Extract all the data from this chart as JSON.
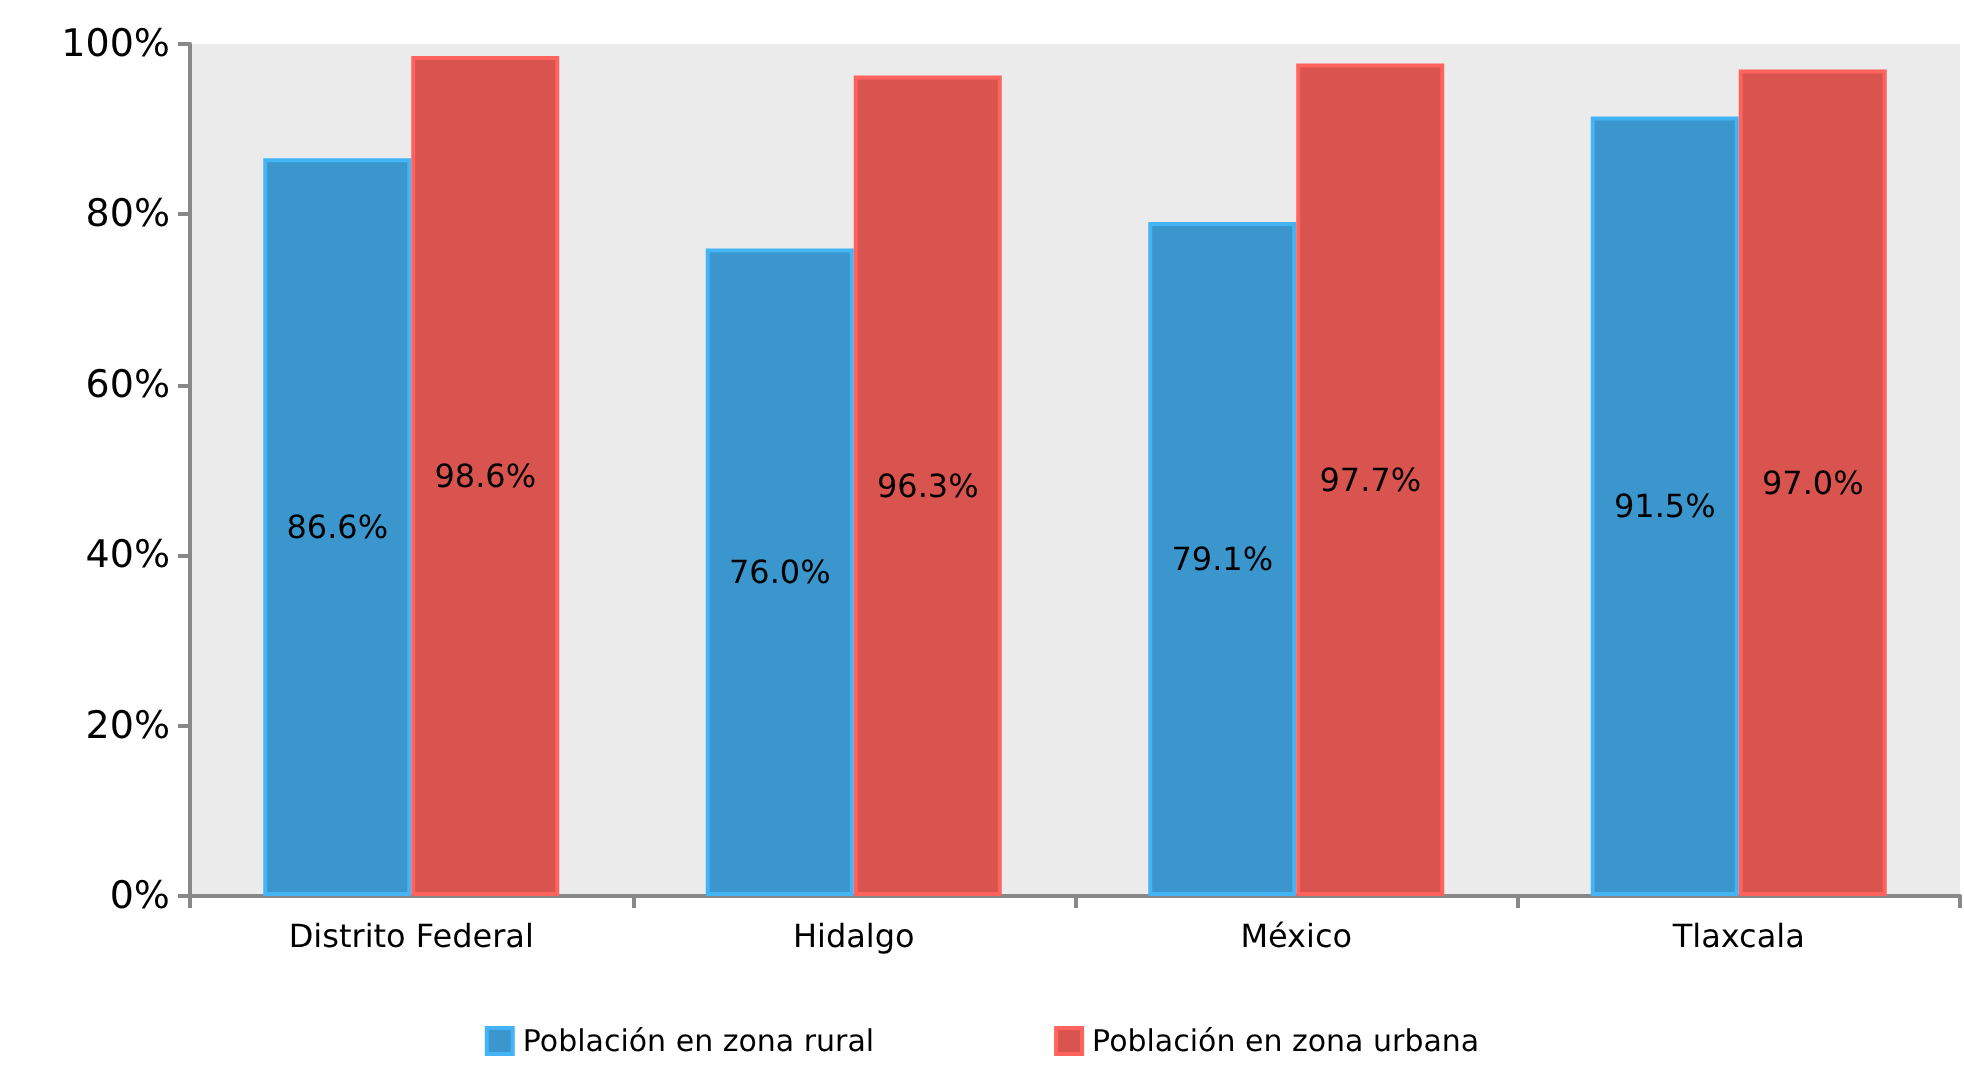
{
  "chart_data": {
    "type": "bar",
    "categories": [
      "Distrito Federal",
      "Hidalgo",
      "México",
      "Tlaxcala"
    ],
    "series": [
      {
        "name": "Población en zona rural",
        "color": "#3a96cc",
        "values": [
          86.6,
          76.0,
          79.1,
          91.5
        ],
        "value_labels": [
          "86.6%",
          "76.0%",
          "79.1%",
          "91.5%"
        ]
      },
      {
        "name": "Población en zona urbana",
        "color": "#d9534f",
        "values": [
          98.6,
          96.3,
          97.7,
          97.0
        ],
        "value_labels": [
          "98.6%",
          "96.3%",
          "97.7%",
          "97.0%"
        ]
      }
    ],
    "ylim": [
      0,
      100
    ],
    "yticks": [
      {
        "value": 0,
        "label": "0%"
      },
      {
        "value": 20,
        "label": "20%"
      },
      {
        "value": 40,
        "label": "40%"
      },
      {
        "value": 60,
        "label": "60%"
      },
      {
        "value": 80,
        "label": "80%"
      },
      {
        "value": 100,
        "label": "100%"
      }
    ],
    "grid": false,
    "legend": "bottom"
  }
}
